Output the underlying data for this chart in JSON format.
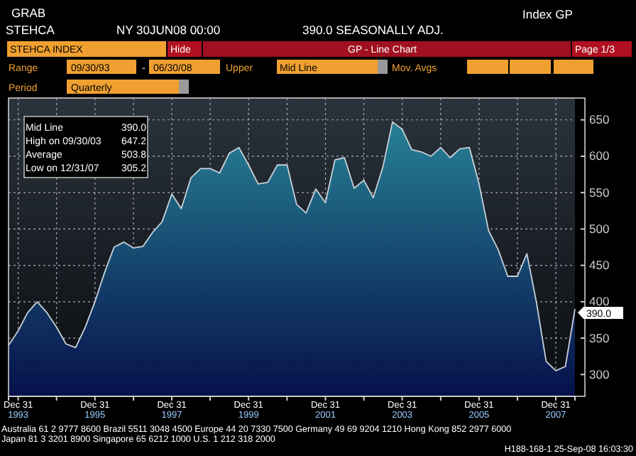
{
  "chart_data": {
    "type": "area",
    "title": "STEHCA INDEX",
    "x": [
      "1993-09-30",
      "1993-12-31",
      "1994-03-31",
      "1994-06-30",
      "1994-09-30",
      "1994-12-31",
      "1995-03-31",
      "1995-06-30",
      "1995-09-30",
      "1995-12-31",
      "1996-03-31",
      "1996-06-30",
      "1996-09-30",
      "1996-12-31",
      "1997-03-31",
      "1997-06-30",
      "1997-09-30",
      "1997-12-31",
      "1998-03-31",
      "1998-06-30",
      "1998-09-30",
      "1998-12-31",
      "1999-03-31",
      "1999-06-30",
      "1999-09-30",
      "1999-12-31",
      "2000-03-31",
      "2000-06-30",
      "2000-09-30",
      "2000-12-31",
      "2001-03-31",
      "2001-06-30",
      "2001-09-30",
      "2001-12-31",
      "2002-03-31",
      "2002-06-30",
      "2002-09-30",
      "2002-12-31",
      "2003-03-31",
      "2003-06-30",
      "2003-09-30",
      "2003-12-31",
      "2004-03-31",
      "2004-06-30",
      "2004-09-30",
      "2004-12-31",
      "2005-03-31",
      "2005-06-30",
      "2005-09-30",
      "2005-12-31",
      "2006-03-31",
      "2006-06-30",
      "2006-09-30",
      "2006-12-31",
      "2007-03-31",
      "2007-06-30",
      "2007-09-30",
      "2007-12-31",
      "2008-03-31",
      "2008-06-30"
    ],
    "series": [
      {
        "color": "#2a8a9c",
        "values": [
          340,
          360,
          385,
          400,
          385,
          365,
          342,
          337,
          365,
          400,
          440,
          475,
          482,
          474,
          476,
          495,
          510,
          548,
          528,
          570,
          583,
          583,
          577,
          604,
          612,
          588,
          562,
          564,
          588,
          588,
          534,
          522,
          555,
          536,
          595,
          598,
          556,
          567,
          543,
          585,
          647.2,
          637,
          609,
          606,
          600,
          612,
          598,
          610,
          612,
          562,
          498,
          472,
          435,
          435,
          466,
          399,
          318,
          305.2,
          311,
          390
        ]
      }
    ],
    "xlim": [
      "1993-09-30",
      "2008-06-30"
    ],
    "xticks": [
      {
        "value": "1993-12-31",
        "label": "Dec 31 1993"
      },
      {
        "value": "1994-12-31",
        "label": null
      },
      {
        "value": "1995-12-31",
        "label": "Dec 31 1995"
      },
      {
        "value": "1996-12-31",
        "label": null
      },
      {
        "value": "1997-12-31",
        "label": "Dec 31 1997"
      },
      {
        "value": "1998-12-31",
        "label": null
      },
      {
        "value": "1999-12-31",
        "label": "Dec 31 1999"
      },
      {
        "value": "2000-12-31",
        "label": null
      },
      {
        "value": "2001-12-31",
        "label": "Dec 31 2001"
      },
      {
        "value": "2002-12-31",
        "label": null
      },
      {
        "value": "2003-12-31",
        "label": "Dec 31 2003"
      },
      {
        "value": "2004-12-31",
        "label": null
      },
      {
        "value": "2005-12-31",
        "label": "Dec 31 2005"
      },
      {
        "value": "2006-12-31",
        "label": null
      },
      {
        "value": "2007-12-31",
        "label": "Dec 31 2007"
      }
    ],
    "ylim": [
      270,
      680
    ],
    "yticks": [
      300,
      350,
      400,
      450,
      500,
      550,
      600,
      650
    ],
    "grid": true,
    "annotations": [
      "GRAB",
      "STEHCA",
      "NY 30JUN08 00:00",
      "390.0 SEASONALLY ADJ.",
      "Index GP",
      "Hide",
      "GP - Line Chart",
      "Page 1/3",
      "Range",
      "09/30/93",
      "-",
      "06/30/08",
      "Upper",
      "Mid Line",
      "Mov. Avgs",
      "Period",
      "Quarterly",
      "Mid Line",
      "390.0",
      "High on  09/30/03",
      "647.2",
      "Average",
      "503.8",
      "Low on  12/31/07",
      "305.2",
      "Australia 61 2 9777 8600 Brazil 5511 3048 4500 Europe 44 20 7330 7500 Germany 49 69 9204 1210 Hong Kong 852 2977 6000",
      "Japan 81 3 3201 8900   Singapore 65 6212 1000   U.S. 1 212 318 2000",
      "H188-168-1 25-Sep-08 16:03:30",
      {
        "text": "390.0",
        "x": "2008-06-30",
        "y": 390
      }
    ]
  }
}
